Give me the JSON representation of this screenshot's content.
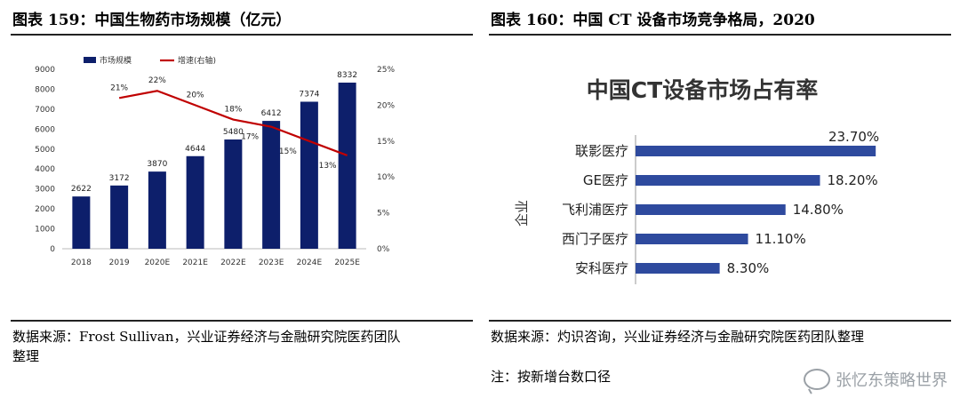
{
  "left_panel": {
    "title": "图表 159：中国生物药市场规模（亿元）",
    "source_line1": "数据来源：Frost Sullivan，兴业证券经济与金融研究院医药团队",
    "source_line2": "整理"
  },
  "right_panel": {
    "title": "图表 160：中国 CT 设备市场竞争格局，2020",
    "source_line1": "数据来源：灼识咨询，兴业证券经济与金融研究院医药团队整理",
    "note": "注：按新增台数口径"
  },
  "watermark": {
    "text": "张忆东策略世界",
    "icon": "wechat-icon"
  },
  "chart_data": [
    {
      "type": "bar",
      "title": "",
      "categories": [
        "2018",
        "2019",
        "2020E",
        "2021E",
        "2022E",
        "2023E",
        "2024E",
        "2025E"
      ],
      "series": [
        {
          "name": "市场规模",
          "kind": "bar",
          "axis": "left",
          "color": "#0d1f6b",
          "values": [
            2622,
            3172,
            3870,
            4644,
            5480,
            6412,
            7374,
            8332
          ],
          "labels": [
            "2622",
            "3172",
            "3870",
            "4644",
            "5480",
            "6412",
            "7374",
            "8332"
          ]
        },
        {
          "name": "增速(右轴)",
          "kind": "line",
          "axis": "right",
          "color": "#c00000",
          "values": [
            null,
            21,
            22,
            20,
            18,
            17,
            15,
            13
          ],
          "labels": [
            "",
            "21%",
            "22%",
            "20%",
            "18%",
            "17%",
            "15%",
            "13%"
          ]
        }
      ],
      "ylim": [
        0,
        9000
      ],
      "yticks": [
        "0",
        "1000",
        "2000",
        "3000",
        "4000",
        "5000",
        "6000",
        "7000",
        "8000",
        "9000"
      ],
      "y2lim": [
        0,
        25
      ],
      "y2ticks": [
        "0%",
        "5%",
        "10%",
        "15%",
        "20%",
        "25%"
      ],
      "legend": "top-left",
      "grid": false
    },
    {
      "type": "bar",
      "orientation": "horizontal",
      "title": "中国CT设备市场占有率",
      "ylabel": "企业",
      "categories": [
        "联影医疗",
        "GE医疗",
        "飞利浦医疗",
        "西门子医疗",
        "安科医疗"
      ],
      "values": [
        23.7,
        18.2,
        14.8,
        11.1,
        8.3
      ],
      "labels": [
        "23.70%",
        "18.20%",
        "14.80%",
        "11.10%",
        "8.30%"
      ],
      "color": "#2e4a9e",
      "xlim": [
        0,
        25
      ],
      "grid": false
    }
  ]
}
